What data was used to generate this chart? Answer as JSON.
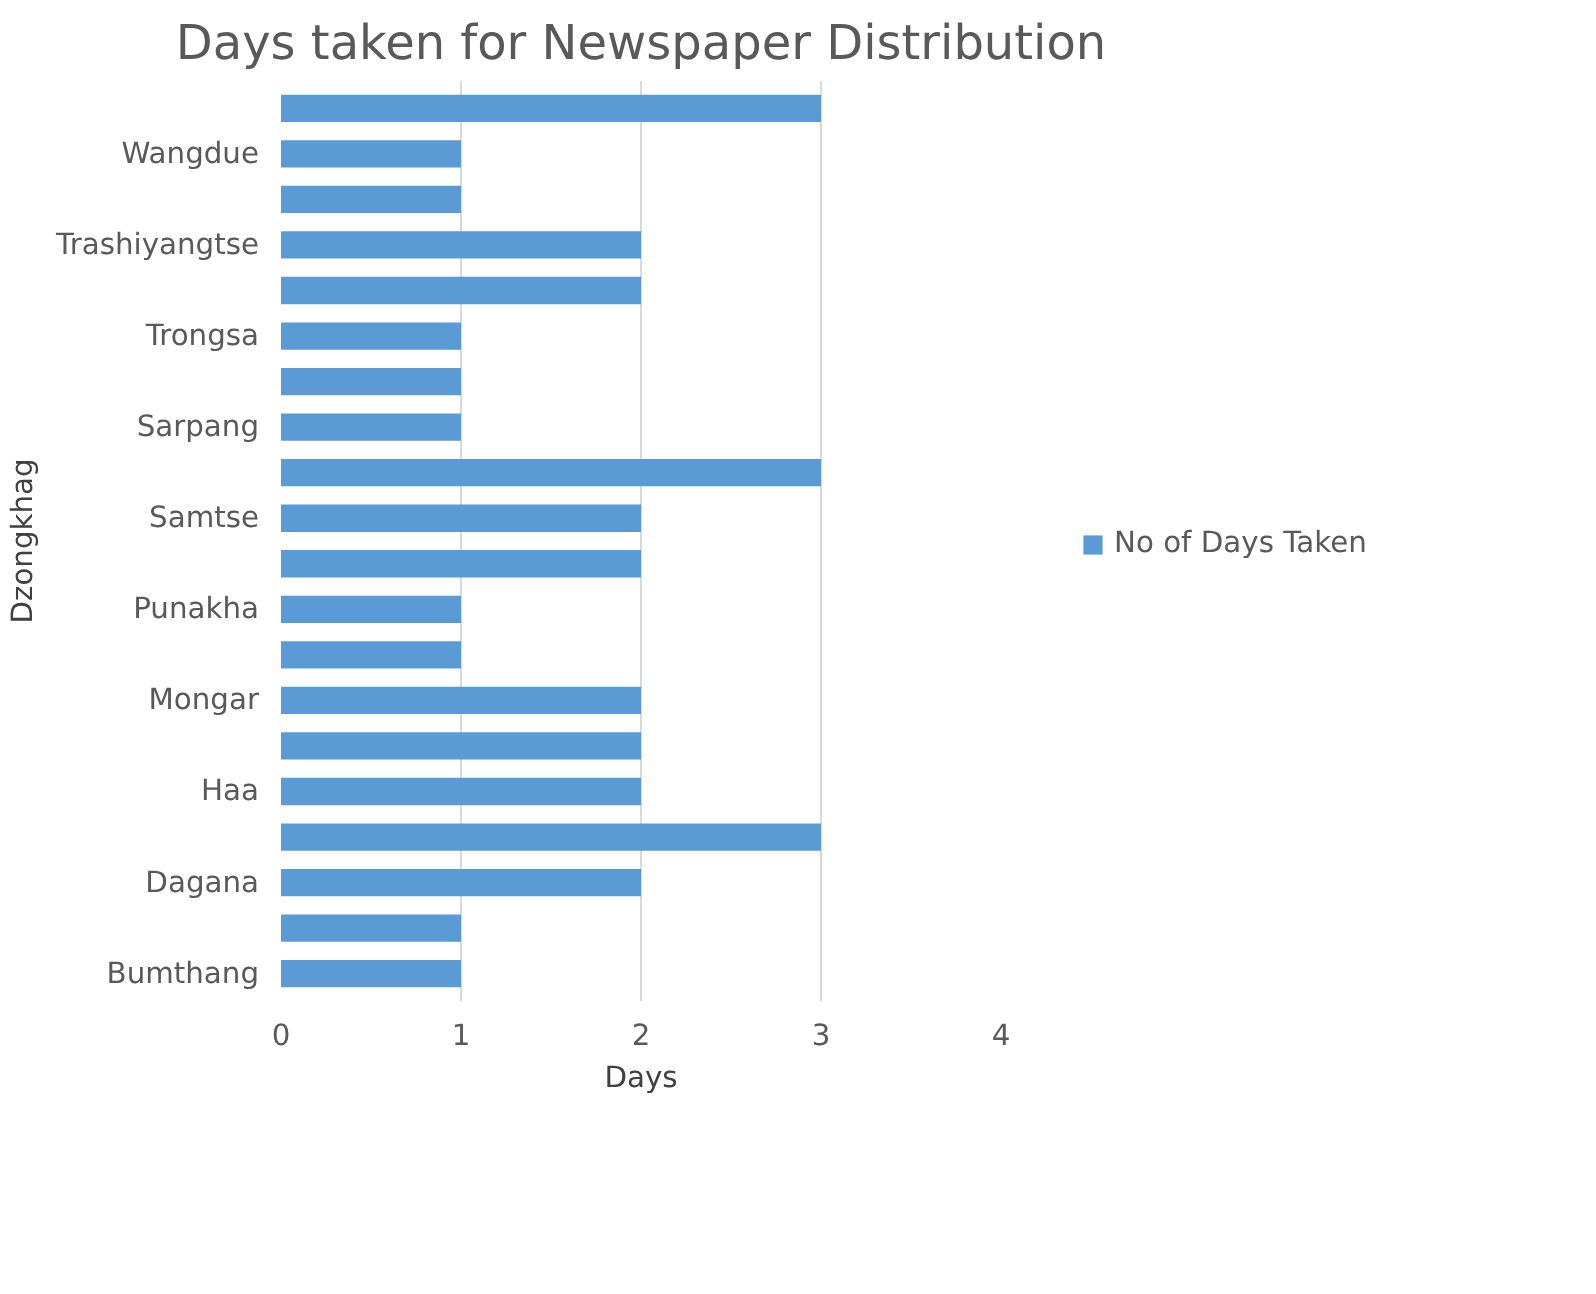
{
  "chart_data": {
    "type": "bar",
    "orientation": "horizontal",
    "title": "Days taken for Newspaper Distribution",
    "xlabel": "Days",
    "ylabel": "Dzongkhag",
    "categories": [
      null,
      "Wangdue",
      null,
      "Trashiyangtse",
      null,
      "Trongsa",
      null,
      "Sarpang",
      null,
      "Samtse",
      null,
      "Punakha",
      null,
      "Mongar",
      null,
      "Haa",
      null,
      "Dagana",
      null,
      "Bumthang"
    ],
    "series": [
      {
        "name": "No of Days Taken",
        "color": "#5b9bd5",
        "values": [
          3,
          1,
          1,
          2,
          2,
          1,
          1,
          1,
          3,
          2,
          2,
          1,
          1,
          2,
          2,
          2,
          3,
          2,
          1,
          1
        ]
      }
    ],
    "xlim": [
      0,
      4
    ],
    "xticks": [
      0,
      1,
      2,
      3,
      4
    ],
    "grid": "x",
    "legend": "right"
  }
}
